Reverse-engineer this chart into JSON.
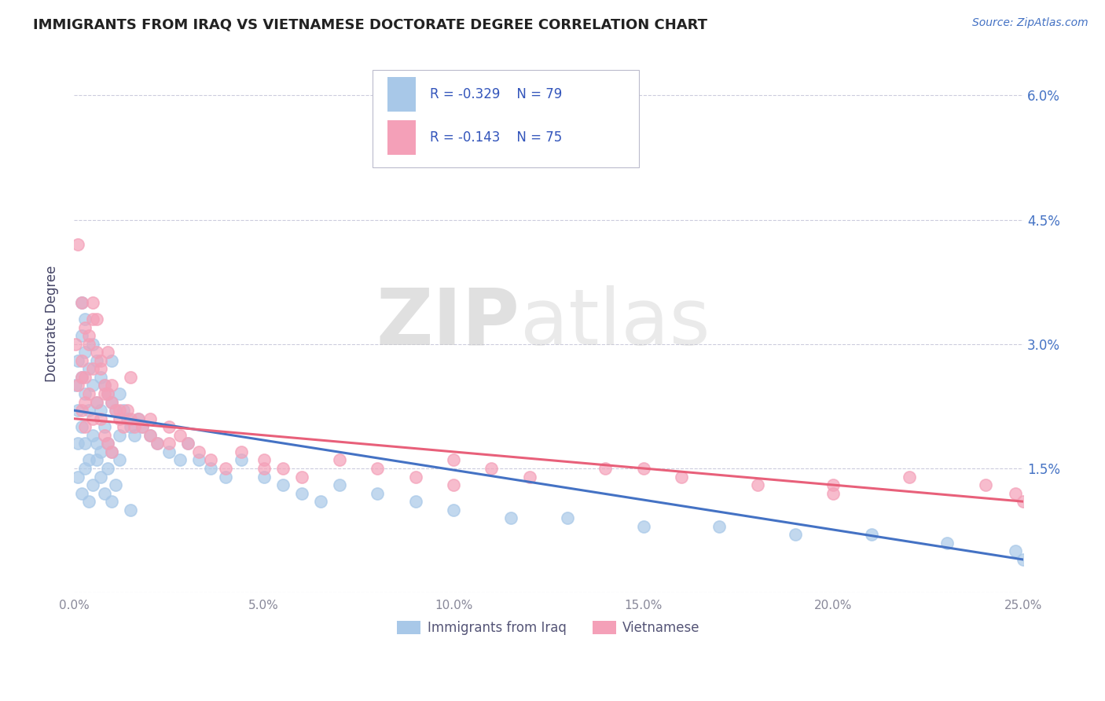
{
  "title": "IMMIGRANTS FROM IRAQ VS VIETNAMESE DOCTORATE DEGREE CORRELATION CHART",
  "source": "Source: ZipAtlas.com",
  "ylabel": "Doctorate Degree",
  "xlim": [
    0.0,
    0.25
  ],
  "ylim": [
    0.0,
    0.065
  ],
  "xticks": [
    0.0,
    0.05,
    0.1,
    0.15,
    0.2,
    0.25
  ],
  "yticks": [
    0.0,
    0.015,
    0.03,
    0.045,
    0.06
  ],
  "yticklabels_right": [
    "",
    "1.5%",
    "3.0%",
    "4.5%",
    "6.0%"
  ],
  "series1_color": "#a8c8e8",
  "series2_color": "#f4a0b8",
  "line1_color": "#4472c4",
  "line2_color": "#e8607a",
  "legend_R1": "R = -0.329",
  "legend_N1": "N = 79",
  "legend_R2": "R = -0.143",
  "legend_N2": "N = 75",
  "legend_label1": "Immigrants from Iraq",
  "legend_label2": "Vietnamese",
  "series1_x": [
    0.0005,
    0.001,
    0.001,
    0.001,
    0.002,
    0.002,
    0.002,
    0.002,
    0.003,
    0.003,
    0.003,
    0.003,
    0.004,
    0.004,
    0.004,
    0.005,
    0.005,
    0.005,
    0.006,
    0.006,
    0.006,
    0.007,
    0.007,
    0.007,
    0.008,
    0.008,
    0.009,
    0.009,
    0.01,
    0.01,
    0.01,
    0.011,
    0.012,
    0.012,
    0.013,
    0.014,
    0.015,
    0.016,
    0.017,
    0.018,
    0.02,
    0.022,
    0.025,
    0.028,
    0.03,
    0.033,
    0.036,
    0.04,
    0.044,
    0.05,
    0.055,
    0.06,
    0.065,
    0.07,
    0.08,
    0.09,
    0.1,
    0.115,
    0.13,
    0.15,
    0.17,
    0.19,
    0.21,
    0.23,
    0.248,
    0.25,
    0.001,
    0.002,
    0.003,
    0.004,
    0.005,
    0.006,
    0.007,
    0.008,
    0.009,
    0.01,
    0.011,
    0.012,
    0.015
  ],
  "series1_y": [
    0.025,
    0.028,
    0.022,
    0.018,
    0.031,
    0.026,
    0.02,
    0.035,
    0.029,
    0.024,
    0.018,
    0.033,
    0.027,
    0.022,
    0.016,
    0.03,
    0.025,
    0.019,
    0.028,
    0.023,
    0.018,
    0.026,
    0.022,
    0.017,
    0.025,
    0.02,
    0.024,
    0.018,
    0.023,
    0.028,
    0.017,
    0.022,
    0.024,
    0.019,
    0.022,
    0.021,
    0.02,
    0.019,
    0.021,
    0.02,
    0.019,
    0.018,
    0.017,
    0.016,
    0.018,
    0.016,
    0.015,
    0.014,
    0.016,
    0.014,
    0.013,
    0.012,
    0.011,
    0.013,
    0.012,
    0.011,
    0.01,
    0.009,
    0.009,
    0.008,
    0.008,
    0.007,
    0.007,
    0.006,
    0.005,
    0.004,
    0.014,
    0.012,
    0.015,
    0.011,
    0.013,
    0.016,
    0.014,
    0.012,
    0.015,
    0.011,
    0.013,
    0.016,
    0.01
  ],
  "series2_x": [
    0.0005,
    0.001,
    0.001,
    0.002,
    0.002,
    0.002,
    0.003,
    0.003,
    0.003,
    0.004,
    0.004,
    0.005,
    0.005,
    0.005,
    0.006,
    0.006,
    0.007,
    0.007,
    0.008,
    0.008,
    0.009,
    0.009,
    0.01,
    0.01,
    0.011,
    0.012,
    0.013,
    0.014,
    0.015,
    0.016,
    0.017,
    0.018,
    0.02,
    0.022,
    0.025,
    0.028,
    0.03,
    0.033,
    0.036,
    0.04,
    0.044,
    0.05,
    0.055,
    0.06,
    0.07,
    0.08,
    0.09,
    0.1,
    0.11,
    0.12,
    0.14,
    0.16,
    0.18,
    0.2,
    0.22,
    0.24,
    0.248,
    0.25,
    0.002,
    0.003,
    0.004,
    0.005,
    0.006,
    0.007,
    0.008,
    0.009,
    0.01,
    0.012,
    0.015,
    0.02,
    0.025,
    0.05,
    0.1,
    0.15,
    0.2
  ],
  "series2_y": [
    0.03,
    0.042,
    0.025,
    0.035,
    0.028,
    0.022,
    0.032,
    0.026,
    0.02,
    0.03,
    0.024,
    0.033,
    0.027,
    0.021,
    0.029,
    0.023,
    0.027,
    0.021,
    0.025,
    0.019,
    0.024,
    0.018,
    0.023,
    0.017,
    0.022,
    0.021,
    0.02,
    0.022,
    0.021,
    0.02,
    0.021,
    0.02,
    0.019,
    0.018,
    0.02,
    0.019,
    0.018,
    0.017,
    0.016,
    0.015,
    0.017,
    0.016,
    0.015,
    0.014,
    0.016,
    0.015,
    0.014,
    0.016,
    0.015,
    0.014,
    0.015,
    0.014,
    0.013,
    0.012,
    0.014,
    0.013,
    0.012,
    0.011,
    0.026,
    0.023,
    0.031,
    0.035,
    0.033,
    0.028,
    0.024,
    0.029,
    0.025,
    0.022,
    0.026,
    0.021,
    0.018,
    0.015,
    0.013,
    0.015,
    0.013
  ],
  "background_color": "#ffffff",
  "grid_color": "#ccccdd",
  "title_color": "#222222",
  "axis_color": "#444466",
  "tick_color": "#888899",
  "right_tick_color": "#4472c4"
}
